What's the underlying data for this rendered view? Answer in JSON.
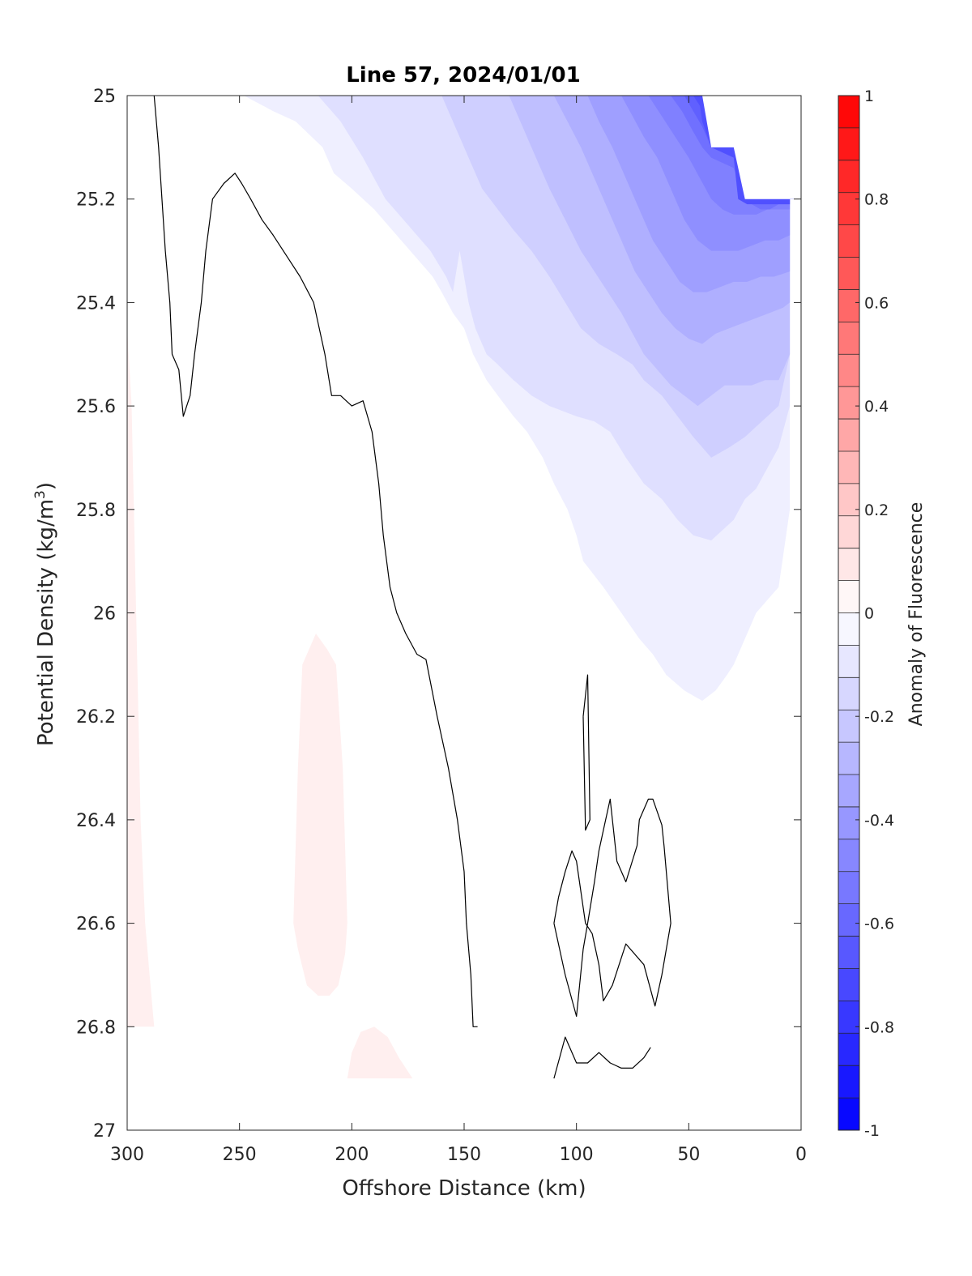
{
  "chart_data": {
    "type": "contour",
    "title": "Line 57, 2024/01/01",
    "xlabel": "Offshore Distance (km)",
    "ylabel_main": "Potential Density (kg/m",
    "ylabel_sup": "3",
    "ylabel_close": ")",
    "colorbar_label": "Anomaly of Fluorescence",
    "xlim": [
      300,
      0
    ],
    "ylim": [
      25,
      27
    ],
    "x_reversed": true,
    "y_reversed": true,
    "xticks": [
      300,
      250,
      200,
      150,
      100,
      50,
      0
    ],
    "xtick_labels": [
      "300",
      "250",
      "200",
      "150",
      "100",
      "50",
      "0"
    ],
    "yticks": [
      25,
      25.2,
      25.4,
      25.6,
      25.8,
      26,
      26.2,
      26.4,
      26.6,
      26.8,
      27
    ],
    "ytick_labels": [
      "25",
      "25.2",
      "25.4",
      "25.6",
      "25.8",
      "26",
      "26.2",
      "26.4",
      "26.6",
      "26.8",
      "27"
    ],
    "colorbar_range": [
      -1,
      1
    ],
    "colorbar_levels": 32,
    "colorbar_ticks": [
      1,
      0.8,
      0.6,
      0.4,
      0.2,
      0,
      -0.2,
      -0.4,
      -0.6,
      -0.8,
      -1
    ],
    "colorbar_tick_labels": [
      "1",
      "0.8",
      "0.6",
      "0.4",
      "0.2",
      "0",
      "-0.2",
      "-0.4",
      "-0.6",
      "-0.8",
      "-1"
    ],
    "colors": {
      "positive": "#ff0000",
      "negative": "#0000ff",
      "zero": "#ffffff",
      "contour_line": "#000000"
    },
    "no_data_region": {
      "x": [
        44,
        40,
        30,
        25,
        5,
        0,
        0,
        44
      ],
      "y": [
        25,
        25.1,
        25.1,
        25.2,
        25.2,
        25.2,
        25,
        25
      ]
    },
    "filled_regions": [
      {
        "level": -0.0625,
        "x": [
          248,
          235,
          225,
          213,
          208,
          200,
          190,
          178,
          170,
          164,
          160,
          155,
          150,
          146,
          140,
          135,
          128,
          122,
          115,
          110,
          104,
          100,
          97,
          88,
          80,
          72,
          66,
          60,
          52,
          48,
          44,
          38,
          33,
          30,
          25,
          20,
          10,
          5,
          5,
          5,
          5
        ],
        "y": [
          25,
          25.03,
          25.05,
          25.1,
          25.15,
          25.18,
          25.22,
          25.28,
          25.32,
          25.35,
          25.38,
          25.42,
          25.45,
          25.5,
          25.55,
          25.58,
          25.62,
          25.65,
          25.7,
          25.75,
          25.8,
          25.85,
          25.9,
          25.95,
          26,
          26.05,
          26.08,
          26.12,
          26.15,
          26.16,
          26.17,
          26.15,
          26.12,
          26.1,
          26.05,
          26.0,
          25.95,
          25.8,
          25.6,
          25.3,
          25.2
        ]
      },
      {
        "level": -0.125,
        "x": [
          215,
          205,
          195,
          185,
          175,
          165,
          158,
          155,
          152,
          148,
          145,
          140,
          135,
          128,
          120,
          112,
          100,
          92,
          85,
          78,
          70,
          62,
          55,
          48,
          40,
          30,
          25,
          20,
          15,
          10,
          5,
          5,
          5
        ],
        "y": [
          25,
          25.05,
          25.12,
          25.2,
          25.25,
          25.3,
          25.35,
          25.38,
          25.3,
          25.4,
          25.45,
          25.5,
          25.52,
          25.55,
          25.58,
          25.6,
          25.62,
          25.63,
          25.65,
          25.7,
          25.75,
          25.78,
          25.82,
          25.85,
          25.86,
          25.82,
          25.78,
          25.76,
          25.72,
          25.68,
          25.6,
          25.3,
          25.2
        ]
      },
      {
        "level": -0.1875,
        "x": [
          160,
          152,
          148,
          142,
          135,
          128,
          120,
          112,
          105,
          98,
          90,
          82,
          75,
          70,
          62,
          55,
          48,
          40,
          32,
          25,
          20,
          15,
          10,
          5,
          5,
          5
        ],
        "y": [
          25,
          25.08,
          25.12,
          25.18,
          25.22,
          25.26,
          25.3,
          25.35,
          25.4,
          25.45,
          25.48,
          25.5,
          25.52,
          25.55,
          25.58,
          25.62,
          25.66,
          25.7,
          25.68,
          25.66,
          25.64,
          25.62,
          25.6,
          25.5,
          25.3,
          25.2
        ]
      },
      {
        "level": -0.25,
        "x": [
          130,
          124,
          118,
          112,
          105,
          98,
          92,
          86,
          80,
          75,
          70,
          64,
          58,
          52,
          46,
          40,
          34,
          28,
          22,
          16,
          10,
          5,
          5,
          5
        ],
        "y": [
          25,
          25.06,
          25.12,
          25.18,
          25.24,
          25.3,
          25.34,
          25.38,
          25.42,
          25.46,
          25.5,
          25.53,
          25.56,
          25.58,
          25.6,
          25.58,
          25.56,
          25.56,
          25.56,
          25.55,
          25.55,
          25.5,
          25.3,
          25.2
        ]
      },
      {
        "level": -0.3125,
        "x": [
          110,
          104,
          98,
          92,
          86,
          80,
          74,
          68,
          62,
          56,
          50,
          44,
          38,
          32,
          26,
          20,
          14,
          8,
          5,
          5,
          5
        ],
        "y": [
          25,
          25.05,
          25.1,
          25.16,
          25.22,
          25.28,
          25.34,
          25.38,
          25.42,
          25.45,
          25.47,
          25.48,
          25.46,
          25.45,
          25.44,
          25.43,
          25.42,
          25.41,
          25.4,
          25.3,
          25.2
        ]
      },
      {
        "level": -0.375,
        "x": [
          95,
          90,
          84,
          78,
          72,
          66,
          60,
          54,
          48,
          42,
          36,
          30,
          24,
          18,
          12,
          5,
          5,
          5
        ],
        "y": [
          25,
          25.05,
          25.1,
          25.16,
          25.22,
          25.28,
          25.32,
          25.36,
          25.38,
          25.38,
          25.37,
          25.36,
          25.36,
          25.35,
          25.35,
          25.34,
          25.3,
          25.2
        ]
      },
      {
        "level": -0.4375,
        "x": [
          80,
          75,
          70,
          64,
          58,
          52,
          46,
          40,
          34,
          28,
          22,
          16,
          10,
          5,
          5
        ],
        "y": [
          25,
          25.04,
          25.08,
          25.12,
          25.18,
          25.24,
          25.28,
          25.3,
          25.3,
          25.3,
          25.29,
          25.28,
          25.28,
          25.27,
          25.2
        ]
      },
      {
        "level": -0.5,
        "x": [
          68,
          62,
          56,
          50,
          45,
          40,
          35,
          30,
          25,
          20,
          15,
          10,
          5,
          5
        ],
        "y": [
          25,
          25.04,
          25.08,
          25.12,
          25.16,
          25.2,
          25.22,
          25.23,
          25.23,
          25.23,
          25.22,
          25.22,
          25.22,
          25.2
        ]
      },
      {
        "level": -0.5625,
        "x": [
          58,
          53,
          48,
          44,
          40,
          30,
          25,
          22,
          18,
          14,
          10,
          5,
          5
        ],
        "y": [
          25,
          25.03,
          25.07,
          25.1,
          25.12,
          25.14,
          25.2,
          25.21,
          25.22,
          25.22,
          25.21,
          25.21,
          25.2
        ]
      },
      {
        "level": -0.625,
        "x": [
          52,
          48,
          44,
          40,
          25,
          22,
          18,
          14,
          10,
          5,
          5
        ],
        "y": [
          25,
          25.03,
          25.06,
          25.1,
          25.1,
          25.2,
          25.21,
          25.21,
          25.2,
          25.2,
          25.2
        ]
      },
      {
        "level": -0.6875,
        "x": [
          48,
          45,
          44,
          40,
          30,
          28,
          24,
          18,
          12,
          5,
          5
        ],
        "y": [
          25,
          25.02,
          25.05,
          25.1,
          25.12,
          25.2,
          25.21,
          25.21,
          25.21,
          25.21,
          25.2
        ]
      },
      {
        "level": 0.0625,
        "x": [
          300,
          298,
          297,
          296,
          295,
          294,
          293,
          292,
          290,
          288,
          288,
          300
        ],
        "y": [
          25.45,
          25.6,
          25.8,
          26.0,
          26.2,
          26.4,
          26.5,
          26.6,
          26.7,
          26.8,
          26.8,
          26.8
        ]
      },
      {
        "level": 0.0625,
        "x": [
          216,
          222,
          224,
          226,
          224,
          220,
          215,
          210,
          206,
          203,
          202,
          204,
          207,
          211
        ],
        "y": [
          26.04,
          26.1,
          26.3,
          26.6,
          26.65,
          26.72,
          26.74,
          26.74,
          26.72,
          26.66,
          26.6,
          26.3,
          26.1,
          26.07
        ]
      },
      {
        "level": 0.0625,
        "x": [
          202,
          200,
          196,
          190,
          184,
          179,
          173,
          202
        ],
        "y": [
          26.9,
          26.85,
          26.81,
          26.8,
          26.82,
          26.86,
          26.9,
          26.9
        ]
      }
    ],
    "contour_lines": [
      {
        "level": 0,
        "x": [
          288,
          286,
          283,
          281,
          280,
          277,
          275,
          272,
          270,
          267,
          265,
          262,
          257,
          252,
          249,
          245,
          240,
          235,
          229,
          223,
          217,
          212,
          209,
          205,
          200,
          195,
          191,
          188,
          186,
          183,
          180,
          176,
          171,
          167,
          162,
          157,
          153,
          150,
          149,
          147,
          146,
          145,
          144,
          144
        ],
        "y": [
          25,
          25.1,
          25.3,
          25.4,
          25.5,
          25.53,
          25.62,
          25.58,
          25.5,
          25.4,
          25.3,
          25.2,
          25.17,
          25.15,
          25.17,
          25.2,
          25.24,
          25.27,
          25.31,
          25.35,
          25.4,
          25.5,
          25.58,
          25.58,
          25.6,
          25.59,
          25.65,
          25.75,
          25.85,
          25.95,
          26.0,
          26.04,
          26.08,
          26.09,
          26.2,
          26.3,
          26.4,
          26.5,
          26.6,
          26.7,
          26.8,
          26.8,
          26.8,
          26.8
        ]
      },
      {
        "level": 0,
        "x": [
          97,
          95,
          94,
          96,
          97
        ],
        "y": [
          26.2,
          26.12,
          26.4,
          26.42,
          26.2
        ]
      },
      {
        "level": 0,
        "x": [
          110,
          105,
          100,
          97,
          95,
          92,
          90,
          88,
          85,
          82,
          78,
          73,
          72,
          68,
          66,
          62,
          61,
          58,
          60,
          62,
          65,
          70,
          78,
          84,
          88,
          90,
          93,
          96,
          100,
          102,
          105,
          108,
          110
        ],
        "y": [
          26.6,
          26.7,
          26.78,
          26.65,
          26.6,
          26.52,
          26.46,
          26.42,
          26.36,
          26.48,
          26.52,
          26.45,
          26.4,
          26.36,
          26.36,
          26.41,
          26.45,
          26.6,
          26.65,
          26.7,
          26.76,
          26.68,
          26.64,
          26.72,
          26.75,
          26.68,
          26.62,
          26.6,
          26.48,
          26.46,
          26.5,
          26.55,
          26.6
        ]
      },
      {
        "level": 0,
        "x": [
          110,
          105,
          100,
          95,
          90,
          85,
          80,
          75,
          70,
          67
        ],
        "y": [
          26.9,
          26.82,
          26.87,
          26.87,
          26.85,
          26.87,
          26.88,
          26.88,
          26.86,
          26.84
        ]
      }
    ]
  }
}
